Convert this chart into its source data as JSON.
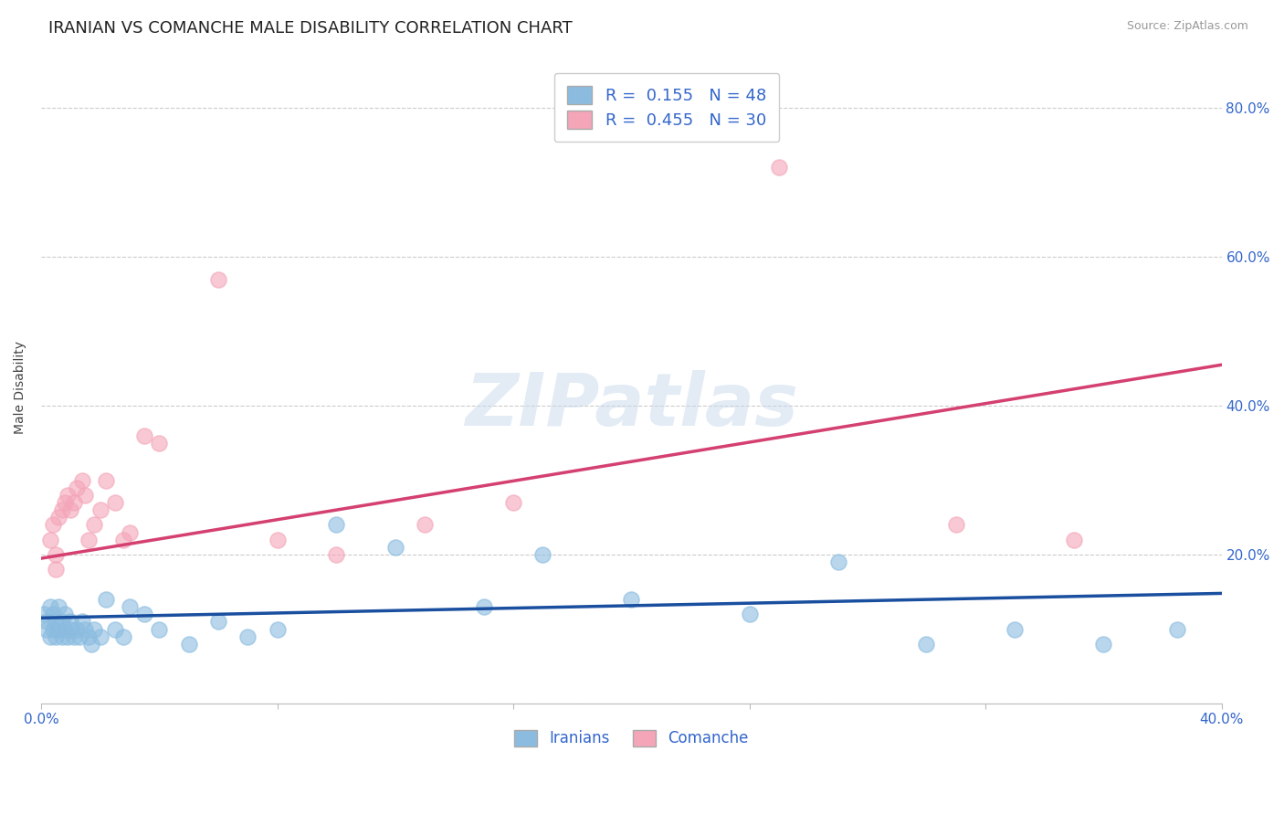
{
  "title": "IRANIAN VS COMANCHE MALE DISABILITY CORRELATION CHART",
  "source": "Source: ZipAtlas.com",
  "ylabel": "Male Disability",
  "xlim": [
    0.0,
    0.4
  ],
  "ylim": [
    0.0,
    0.85
  ],
  "yticks": [
    0.0,
    0.2,
    0.4,
    0.6,
    0.8
  ],
  "ytick_labels": [
    "",
    "20.0%",
    "40.0%",
    "60.0%",
    "80.0%"
  ],
  "xticks": [
    0.0,
    0.08,
    0.16,
    0.24,
    0.32,
    0.4
  ],
  "xtick_labels": [
    "0.0%",
    "",
    "",
    "",
    "",
    "40.0%"
  ],
  "iranians_x": [
    0.001,
    0.002,
    0.002,
    0.003,
    0.003,
    0.004,
    0.004,
    0.005,
    0.005,
    0.006,
    0.006,
    0.007,
    0.007,
    0.008,
    0.008,
    0.009,
    0.01,
    0.01,
    0.011,
    0.012,
    0.013,
    0.014,
    0.015,
    0.016,
    0.017,
    0.018,
    0.02,
    0.022,
    0.025,
    0.028,
    0.03,
    0.035,
    0.04,
    0.05,
    0.06,
    0.07,
    0.08,
    0.1,
    0.12,
    0.15,
    0.17,
    0.2,
    0.24,
    0.27,
    0.3,
    0.33,
    0.36,
    0.385
  ],
  "iranians_y": [
    0.12,
    0.11,
    0.1,
    0.13,
    0.09,
    0.12,
    0.1,
    0.11,
    0.09,
    0.13,
    0.1,
    0.09,
    0.11,
    0.1,
    0.12,
    0.09,
    0.1,
    0.11,
    0.09,
    0.1,
    0.09,
    0.11,
    0.1,
    0.09,
    0.08,
    0.1,
    0.09,
    0.14,
    0.1,
    0.09,
    0.13,
    0.12,
    0.1,
    0.08,
    0.11,
    0.09,
    0.1,
    0.24,
    0.21,
    0.13,
    0.2,
    0.14,
    0.12,
    0.19,
    0.08,
    0.1,
    0.08,
    0.1
  ],
  "comanche_x": [
    0.003,
    0.004,
    0.005,
    0.005,
    0.006,
    0.007,
    0.008,
    0.009,
    0.01,
    0.011,
    0.012,
    0.014,
    0.015,
    0.016,
    0.018,
    0.02,
    0.022,
    0.025,
    0.028,
    0.03,
    0.035,
    0.04,
    0.06,
    0.08,
    0.1,
    0.13,
    0.16,
    0.25,
    0.31,
    0.35
  ],
  "comanche_y": [
    0.22,
    0.24,
    0.2,
    0.18,
    0.25,
    0.26,
    0.27,
    0.28,
    0.26,
    0.27,
    0.29,
    0.3,
    0.28,
    0.22,
    0.24,
    0.26,
    0.3,
    0.27,
    0.22,
    0.23,
    0.36,
    0.35,
    0.57,
    0.22,
    0.2,
    0.24,
    0.27,
    0.72,
    0.24,
    0.22
  ],
  "iranian_color": "#8BBCE0",
  "comanche_color": "#F4A5B8",
  "iranian_line_color": "#1A4F9F",
  "comanche_line_color": "#D44070",
  "line_y0_iranian": 0.115,
  "line_y1_iranian": 0.148,
  "line_y0_comanche": 0.195,
  "line_y1_comanche": 0.455,
  "R_iranian": 0.155,
  "N_iranian": 48,
  "R_comanche": 0.455,
  "N_comanche": 30,
  "background_color": "#ffffff",
  "grid_color": "#cccccc",
  "title_fontsize": 13,
  "tick_label_color": "#3366CC",
  "watermark_text": "ZIPatlas"
}
